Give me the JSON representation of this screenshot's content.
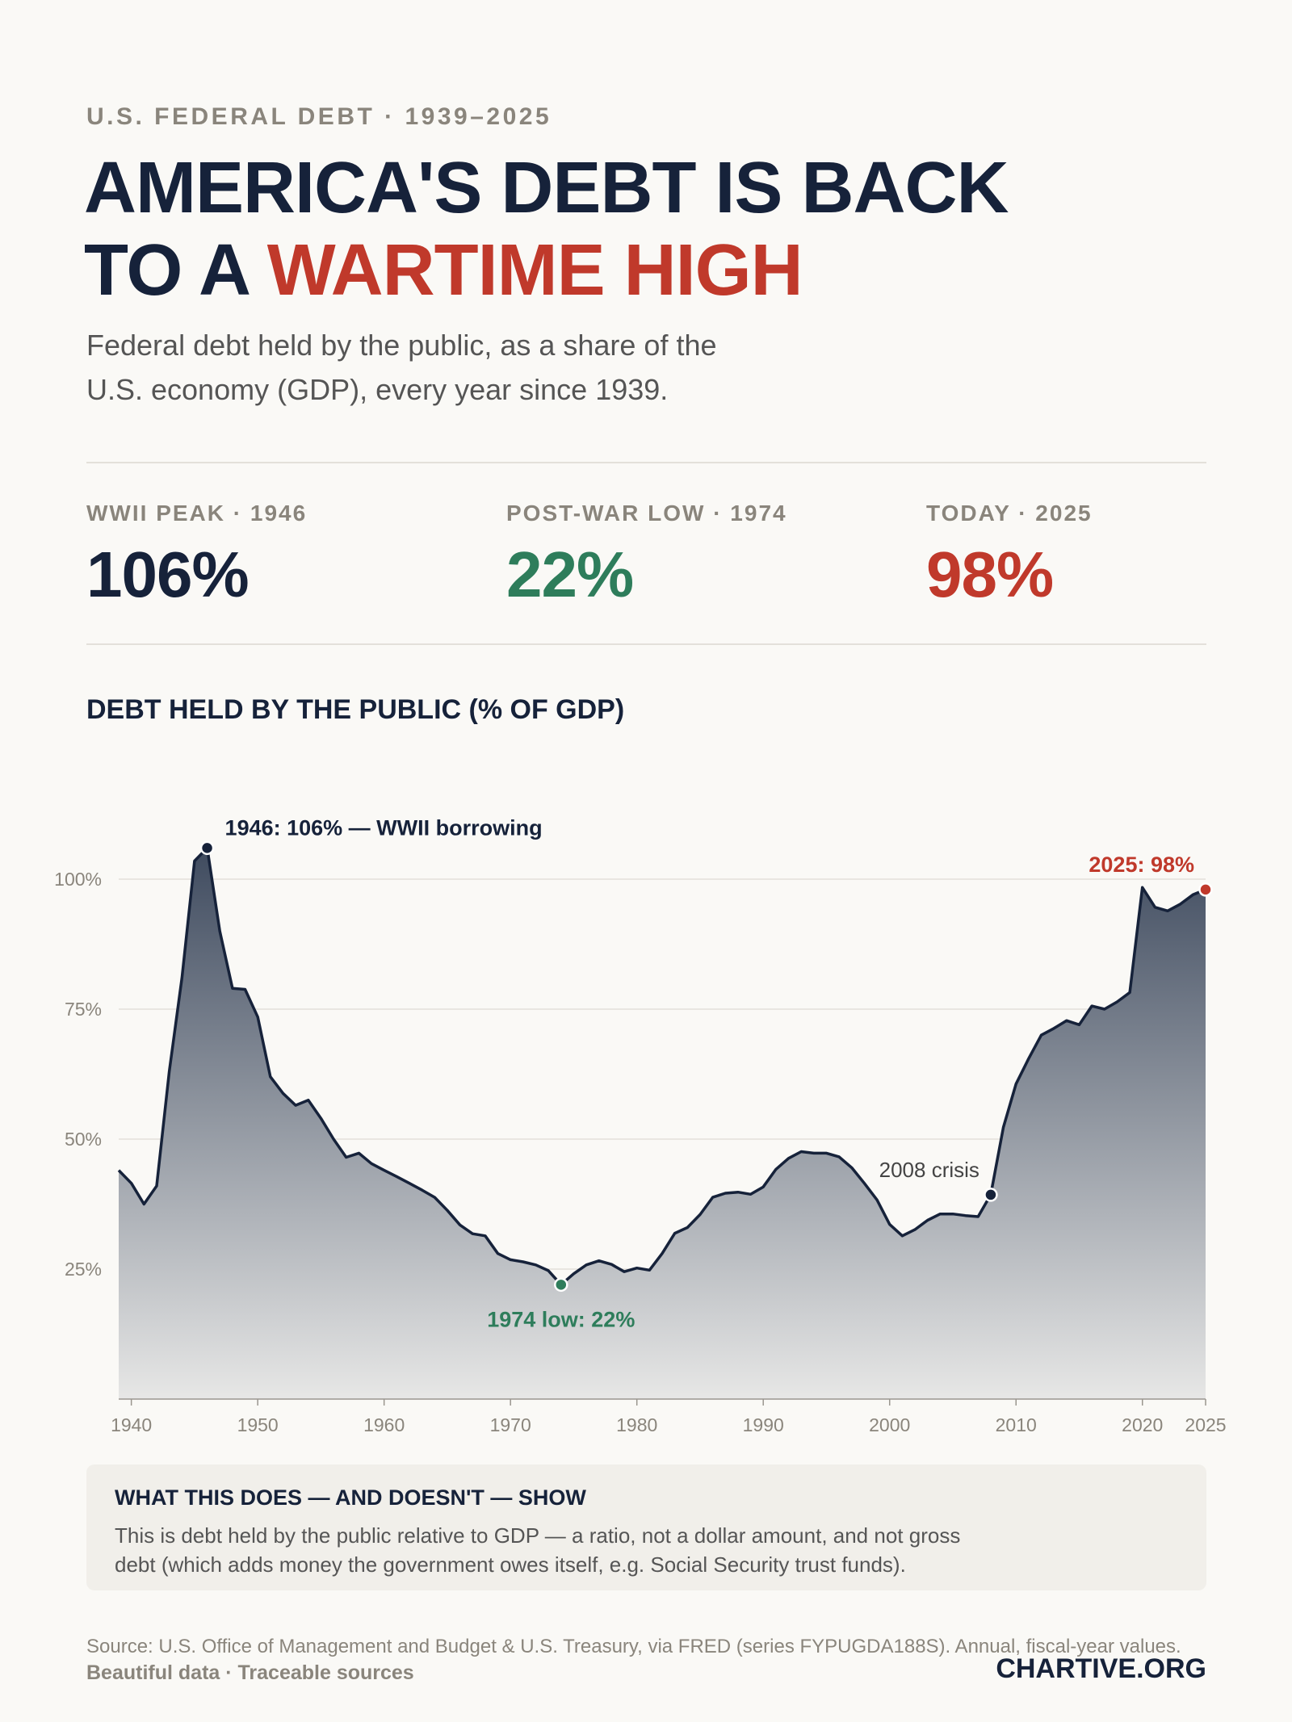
{
  "header": {
    "kicker": "U.S. FEDERAL DEBT · 1939–2025",
    "headline_line1": "AMERICA'S DEBT IS BACK",
    "headline_line2_prefix": "TO A ",
    "headline_line2_accent": "WARTIME HIGH",
    "subtitle_line1": "Federal debt held by the public, as a share of the",
    "subtitle_line2": "U.S. economy (GDP), every year since 1939."
  },
  "stats": [
    {
      "label": "WWII PEAK · 1946",
      "value": "106%",
      "color": "#16223a"
    },
    {
      "label": "POST-WAR LOW · 1974",
      "value": "22%",
      "color": "#2e7d5b"
    },
    {
      "label": "TODAY · 2025",
      "value": "98%",
      "color": "#c0392b"
    }
  ],
  "chart_heading": "DEBT HELD BY THE PUBLIC (% OF GDP)",
  "chart_data": {
    "type": "area",
    "title": "DEBT HELD BY THE PUBLIC (% OF GDP)",
    "xlim": [
      1939,
      2025
    ],
    "ylim": [
      0,
      110
    ],
    "grid": true,
    "y_ticks": [
      25,
      50,
      75,
      100
    ],
    "y_tick_labels": [
      "25%",
      "50%",
      "75%",
      "100%"
    ],
    "x_ticks": [
      1940,
      1950,
      1960,
      1970,
      1980,
      1990,
      2000,
      2010,
      2020,
      2025
    ],
    "x_tick_labels": [
      "1940",
      "1950",
      "1960",
      "1970",
      "1980",
      "1990",
      "2000",
      "2010",
      "2020",
      "2025"
    ],
    "x": [
      1939,
      1940,
      1941,
      1942,
      1943,
      1944,
      1945,
      1946,
      1947,
      1948,
      1949,
      1950,
      1951,
      1952,
      1953,
      1954,
      1955,
      1956,
      1957,
      1958,
      1959,
      1960,
      1961,
      1962,
      1963,
      1964,
      1965,
      1966,
      1967,
      1968,
      1969,
      1970,
      1971,
      1972,
      1973,
      1974,
      1975,
      1976,
      1977,
      1978,
      1979,
      1980,
      1981,
      1982,
      1983,
      1984,
      1985,
      1986,
      1987,
      1988,
      1989,
      1990,
      1991,
      1992,
      1993,
      1994,
      1995,
      1996,
      1997,
      1998,
      1999,
      2000,
      2001,
      2002,
      2003,
      2004,
      2005,
      2006,
      2007,
      2008,
      2009,
      2010,
      2011,
      2012,
      2013,
      2014,
      2015,
      2016,
      2017,
      2018,
      2019,
      2020,
      2021,
      2022,
      2023,
      2024,
      2025
    ],
    "values": [
      44,
      41.5,
      37.5,
      41,
      63,
      81,
      103.5,
      106,
      90,
      79,
      78.8,
      73.5,
      62,
      58.8,
      56.5,
      57.5,
      54,
      50,
      46.5,
      47.3,
      45.3,
      44,
      42.8,
      41.5,
      40.2,
      38.8,
      36.3,
      33.5,
      31.8,
      31.4,
      28,
      26.8,
      26.4,
      25.8,
      24.7,
      22,
      24.1,
      25.8,
      26.6,
      25.9,
      24.5,
      25.2,
      24.8,
      28,
      31.9,
      33,
      35.5,
      38.8,
      39.6,
      39.8,
      39.4,
      40.8,
      44.2,
      46.3,
      47.6,
      47.3,
      47.3,
      46.6,
      44.5,
      41.5,
      38.3,
      33.6,
      31.4,
      32.6,
      34.4,
      35.6,
      35.6,
      35.3,
      35.1,
      39.3,
      52.3,
      60.6,
      65.5,
      70,
      71.3,
      72.8,
      72,
      75.6,
      75,
      76.4,
      78.2,
      98.4,
      94.6,
      93.9,
      95.2,
      97,
      98
    ],
    "annotations": [
      {
        "x": 1946,
        "y": 106,
        "text": "1946: 106% — WWII borrowing",
        "color": "#16223a"
      },
      {
        "x": 1974,
        "y": 22,
        "text": "1974 low: 22%",
        "color": "#2e7d5b"
      },
      {
        "x": 2008,
        "y": 39.3,
        "text": "2008 crisis",
        "color": "#444444"
      },
      {
        "x": 2025,
        "y": 98,
        "text": "2025: 98%",
        "color": "#c0392b"
      }
    ]
  },
  "note": {
    "title": "WHAT THIS DOES — AND DOESN'T — SHOW",
    "body_line1": "This is debt held by the public relative to GDP — a ratio, not a dollar amount, and not gross",
    "body_line2": "debt (which adds money the government owes itself, e.g. Social Security trust funds)."
  },
  "footer": {
    "source": "Source: U.S. Office of Management and Budget & U.S. Treasury, via FRED (series FYPUGDA188S). Annual, fiscal-year values.",
    "tagline": "Beautiful data · Traceable sources",
    "brand": "CHARTIVE.ORG"
  },
  "colors": {
    "line": "#16223a",
    "area_top": "#3f4b5f",
    "area_bottom": "#e7e7e6",
    "grid": "#e3e0da",
    "accent_red": "#c0392b",
    "accent_green": "#2e7d5b"
  }
}
